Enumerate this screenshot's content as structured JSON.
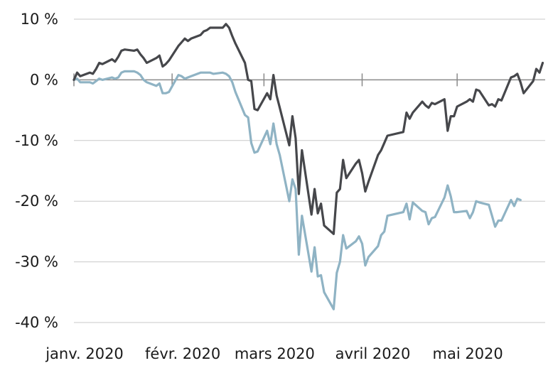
{
  "chart_data": {
    "type": "line",
    "title": "",
    "xlabel": "",
    "ylabel": "",
    "ylim": [
      -40,
      10
    ],
    "xlim": [
      "2020-01-01",
      "2020-05-27"
    ],
    "grid": "horizontal",
    "y_ticks": [
      {
        "value": 10,
        "label": "10 %"
      },
      {
        "value": 0,
        "label": "0 %"
      },
      {
        "value": -10,
        "label": "-10 %"
      },
      {
        "value": -20,
        "label": "-20 %"
      },
      {
        "value": -30,
        "label": "-30 %"
      },
      {
        "value": -40,
        "label": "-40 %"
      }
    ],
    "x_ticks": [
      {
        "date": "2020-01-01",
        "label": "janv. 2020"
      },
      {
        "date": "2020-02-01",
        "label": "févr. 2020"
      },
      {
        "date": "2020-03-01",
        "label": "mars 2020"
      },
      {
        "date": "2020-04-01",
        "label": "avril 2020"
      },
      {
        "date": "2020-05-01",
        "label": "mai 2020"
      }
    ],
    "series": [
      {
        "color": "#46474b",
        "points": [
          [
            "2020-01-01",
            0
          ],
          [
            "2020-01-02",
            1.2
          ],
          [
            "2020-01-03",
            0.6
          ],
          [
            "2020-01-06",
            1.2
          ],
          [
            "2020-01-07",
            1.0
          ],
          [
            "2020-01-08",
            1.8
          ],
          [
            "2020-01-09",
            2.8
          ],
          [
            "2020-01-10",
            2.6
          ],
          [
            "2020-01-13",
            3.4
          ],
          [
            "2020-01-14",
            3.0
          ],
          [
            "2020-01-15",
            3.8
          ],
          [
            "2020-01-16",
            4.8
          ],
          [
            "2020-01-17",
            5.0
          ],
          [
            "2020-01-20",
            4.8
          ],
          [
            "2020-01-21",
            5.0
          ],
          [
            "2020-01-22",
            4.2
          ],
          [
            "2020-01-23",
            3.6
          ],
          [
            "2020-01-24",
            2.8
          ],
          [
            "2020-01-27",
            3.6
          ],
          [
            "2020-01-28",
            4.0
          ],
          [
            "2020-01-29",
            2.2
          ],
          [
            "2020-01-30",
            2.6
          ],
          [
            "2020-01-31",
            3.2
          ],
          [
            "2020-02-03",
            5.6
          ],
          [
            "2020-02-04",
            6.2
          ],
          [
            "2020-02-05",
            6.8
          ],
          [
            "2020-02-06",
            6.4
          ],
          [
            "2020-02-07",
            6.8
          ],
          [
            "2020-02-10",
            7.4
          ],
          [
            "2020-02-11",
            8.0
          ],
          [
            "2020-02-12",
            8.2
          ],
          [
            "2020-02-13",
            8.6
          ],
          [
            "2020-02-14",
            8.6
          ],
          [
            "2020-02-17",
            8.6
          ],
          [
            "2020-02-18",
            9.2
          ],
          [
            "2020-02-19",
            8.6
          ],
          [
            "2020-02-20",
            7.2
          ],
          [
            "2020-02-21",
            6.0
          ],
          [
            "2020-02-24",
            2.8
          ],
          [
            "2020-02-25",
            0.0
          ],
          [
            "2020-02-26",
            -0.2
          ],
          [
            "2020-02-27",
            -4.8
          ],
          [
            "2020-02-28",
            -5.0
          ],
          [
            "2020-03-02",
            -2.2
          ],
          [
            "2020-03-03",
            -3.2
          ],
          [
            "2020-03-04",
            0.8
          ],
          [
            "2020-03-05",
            -2.6
          ],
          [
            "2020-03-06",
            -4.6
          ],
          [
            "2020-03-09",
            -10.8
          ],
          [
            "2020-03-10",
            -6.0
          ],
          [
            "2020-03-11",
            -9.6
          ],
          [
            "2020-03-12",
            -18.8
          ],
          [
            "2020-03-13",
            -11.6
          ],
          [
            "2020-03-16",
            -22.2
          ],
          [
            "2020-03-17",
            -18.0
          ],
          [
            "2020-03-18",
            -22.0
          ],
          [
            "2020-03-19",
            -20.4
          ],
          [
            "2020-03-20",
            -24.0
          ],
          [
            "2020-03-23",
            -25.4
          ],
          [
            "2020-03-24",
            -18.6
          ],
          [
            "2020-03-25",
            -18.0
          ],
          [
            "2020-03-26",
            -13.2
          ],
          [
            "2020-03-27",
            -16.2
          ],
          [
            "2020-03-30",
            -13.8
          ],
          [
            "2020-03-31",
            -13.2
          ],
          [
            "2020-04-01",
            -15.4
          ],
          [
            "2020-04-02",
            -18.4
          ],
          [
            "2020-04-03",
            -16.8
          ],
          [
            "2020-04-06",
            -12.4
          ],
          [
            "2020-04-07",
            -11.6
          ],
          [
            "2020-04-08",
            -10.4
          ],
          [
            "2020-04-09",
            -9.2
          ],
          [
            "2020-04-14",
            -8.6
          ],
          [
            "2020-04-15",
            -5.4
          ],
          [
            "2020-04-16",
            -6.4
          ],
          [
            "2020-04-17",
            -5.4
          ],
          [
            "2020-04-20",
            -3.6
          ],
          [
            "2020-04-21",
            -4.2
          ],
          [
            "2020-04-22",
            -4.6
          ],
          [
            "2020-04-23",
            -3.8
          ],
          [
            "2020-04-24",
            -4.0
          ],
          [
            "2020-04-27",
            -3.2
          ],
          [
            "2020-04-28",
            -8.4
          ],
          [
            "2020-04-29",
            -6.0
          ],
          [
            "2020-04-30",
            -6.0
          ],
          [
            "2020-05-01",
            -4.4
          ],
          [
            "2020-05-04",
            -3.6
          ],
          [
            "2020-05-05",
            -3.2
          ],
          [
            "2020-05-06",
            -3.6
          ],
          [
            "2020-05-07",
            -1.6
          ],
          [
            "2020-05-08",
            -1.8
          ],
          [
            "2020-05-11",
            -4.2
          ],
          [
            "2020-05-12",
            -4.0
          ],
          [
            "2020-05-13",
            -4.4
          ],
          [
            "2020-05-14",
            -3.2
          ],
          [
            "2020-05-15",
            -3.4
          ],
          [
            "2020-05-18",
            0.4
          ],
          [
            "2020-05-19",
            0.6
          ],
          [
            "2020-05-20",
            1.0
          ],
          [
            "2020-05-21",
            -0.4
          ],
          [
            "2020-05-22",
            -2.2
          ],
          [
            "2020-05-25",
            -0.2
          ],
          [
            "2020-05-26",
            1.8
          ],
          [
            "2020-05-27",
            1.2
          ],
          [
            "2020-05-28",
            2.8
          ]
        ]
      },
      {
        "color": "#8fb3c4",
        "points": [
          [
            "2020-01-01",
            0
          ],
          [
            "2020-01-02",
            0.2
          ],
          [
            "2020-01-03",
            -0.4
          ],
          [
            "2020-01-06",
            -0.4
          ],
          [
            "2020-01-07",
            -0.6
          ],
          [
            "2020-01-08",
            -0.2
          ],
          [
            "2020-01-09",
            0.2
          ],
          [
            "2020-01-10",
            0.0
          ],
          [
            "2020-01-13",
            0.4
          ],
          [
            "2020-01-14",
            0.2
          ],
          [
            "2020-01-15",
            0.4
          ],
          [
            "2020-01-16",
            1.2
          ],
          [
            "2020-01-17",
            1.4
          ],
          [
            "2020-01-20",
            1.4
          ],
          [
            "2020-01-21",
            1.2
          ],
          [
            "2020-01-22",
            0.8
          ],
          [
            "2020-01-23",
            0.0
          ],
          [
            "2020-01-24",
            -0.4
          ],
          [
            "2020-01-27",
            -1.0
          ],
          [
            "2020-01-28",
            -0.6
          ],
          [
            "2020-01-29",
            -2.2
          ],
          [
            "2020-01-30",
            -2.2
          ],
          [
            "2020-01-31",
            -2.0
          ],
          [
            "2020-02-03",
            0.8
          ],
          [
            "2020-02-04",
            0.6
          ],
          [
            "2020-02-05",
            0.2
          ],
          [
            "2020-02-06",
            0.4
          ],
          [
            "2020-02-07",
            0.6
          ],
          [
            "2020-02-10",
            1.2
          ],
          [
            "2020-02-11",
            1.2
          ],
          [
            "2020-02-12",
            1.2
          ],
          [
            "2020-02-13",
            1.2
          ],
          [
            "2020-02-14",
            1.0
          ],
          [
            "2020-02-17",
            1.2
          ],
          [
            "2020-02-18",
            1.0
          ],
          [
            "2020-02-19",
            0.6
          ],
          [
            "2020-02-20",
            -0.4
          ],
          [
            "2020-02-21",
            -2.0
          ],
          [
            "2020-02-24",
            -5.8
          ],
          [
            "2020-02-25",
            -6.2
          ],
          [
            "2020-02-26",
            -10.4
          ],
          [
            "2020-02-27",
            -12.0
          ],
          [
            "2020-02-28",
            -11.8
          ],
          [
            "2020-03-02",
            -8.4
          ],
          [
            "2020-03-03",
            -10.6
          ],
          [
            "2020-03-04",
            -7.2
          ],
          [
            "2020-03-05",
            -10.6
          ],
          [
            "2020-03-06",
            -12.4
          ],
          [
            "2020-03-09",
            -20.0
          ],
          [
            "2020-03-10",
            -16.4
          ],
          [
            "2020-03-11",
            -18.0
          ],
          [
            "2020-03-12",
            -28.8
          ],
          [
            "2020-03-13",
            -22.4
          ],
          [
            "2020-03-16",
            -31.6
          ],
          [
            "2020-03-17",
            -27.6
          ],
          [
            "2020-03-18",
            -32.4
          ],
          [
            "2020-03-19",
            -32.2
          ],
          [
            "2020-03-20",
            -35.0
          ],
          [
            "2020-03-23",
            -37.8
          ],
          [
            "2020-03-24",
            -31.8
          ],
          [
            "2020-03-25",
            -30.0
          ],
          [
            "2020-03-26",
            -25.6
          ],
          [
            "2020-03-27",
            -27.8
          ],
          [
            "2020-03-30",
            -26.6
          ],
          [
            "2020-03-31",
            -25.8
          ],
          [
            "2020-04-01",
            -27.0
          ],
          [
            "2020-04-02",
            -30.6
          ],
          [
            "2020-04-03",
            -29.2
          ],
          [
            "2020-04-06",
            -27.4
          ],
          [
            "2020-04-07",
            -25.6
          ],
          [
            "2020-04-08",
            -25.0
          ],
          [
            "2020-04-09",
            -22.4
          ],
          [
            "2020-04-14",
            -21.8
          ],
          [
            "2020-04-15",
            -20.4
          ],
          [
            "2020-04-16",
            -23.0
          ],
          [
            "2020-04-17",
            -20.2
          ],
          [
            "2020-04-20",
            -21.6
          ],
          [
            "2020-04-21",
            -21.8
          ],
          [
            "2020-04-22",
            -23.8
          ],
          [
            "2020-04-23",
            -22.8
          ],
          [
            "2020-04-24",
            -22.6
          ],
          [
            "2020-04-27",
            -19.4
          ],
          [
            "2020-04-28",
            -17.4
          ],
          [
            "2020-04-29",
            -19.2
          ],
          [
            "2020-04-30",
            -21.8
          ],
          [
            "2020-05-01",
            -21.8
          ],
          [
            "2020-05-04",
            -21.6
          ],
          [
            "2020-05-05",
            -22.8
          ],
          [
            "2020-05-06",
            -21.8
          ],
          [
            "2020-05-07",
            -20.0
          ],
          [
            "2020-05-08",
            -20.2
          ],
          [
            "2020-05-11",
            -20.6
          ],
          [
            "2020-05-12",
            -22.4
          ],
          [
            "2020-05-13",
            -24.2
          ],
          [
            "2020-05-14",
            -23.2
          ],
          [
            "2020-05-15",
            -23.2
          ],
          [
            "2020-05-18",
            -19.8
          ],
          [
            "2020-05-19",
            -20.8
          ],
          [
            "2020-05-20",
            -19.6
          ],
          [
            "2020-05-21",
            -19.8
          ]
        ]
      }
    ]
  }
}
